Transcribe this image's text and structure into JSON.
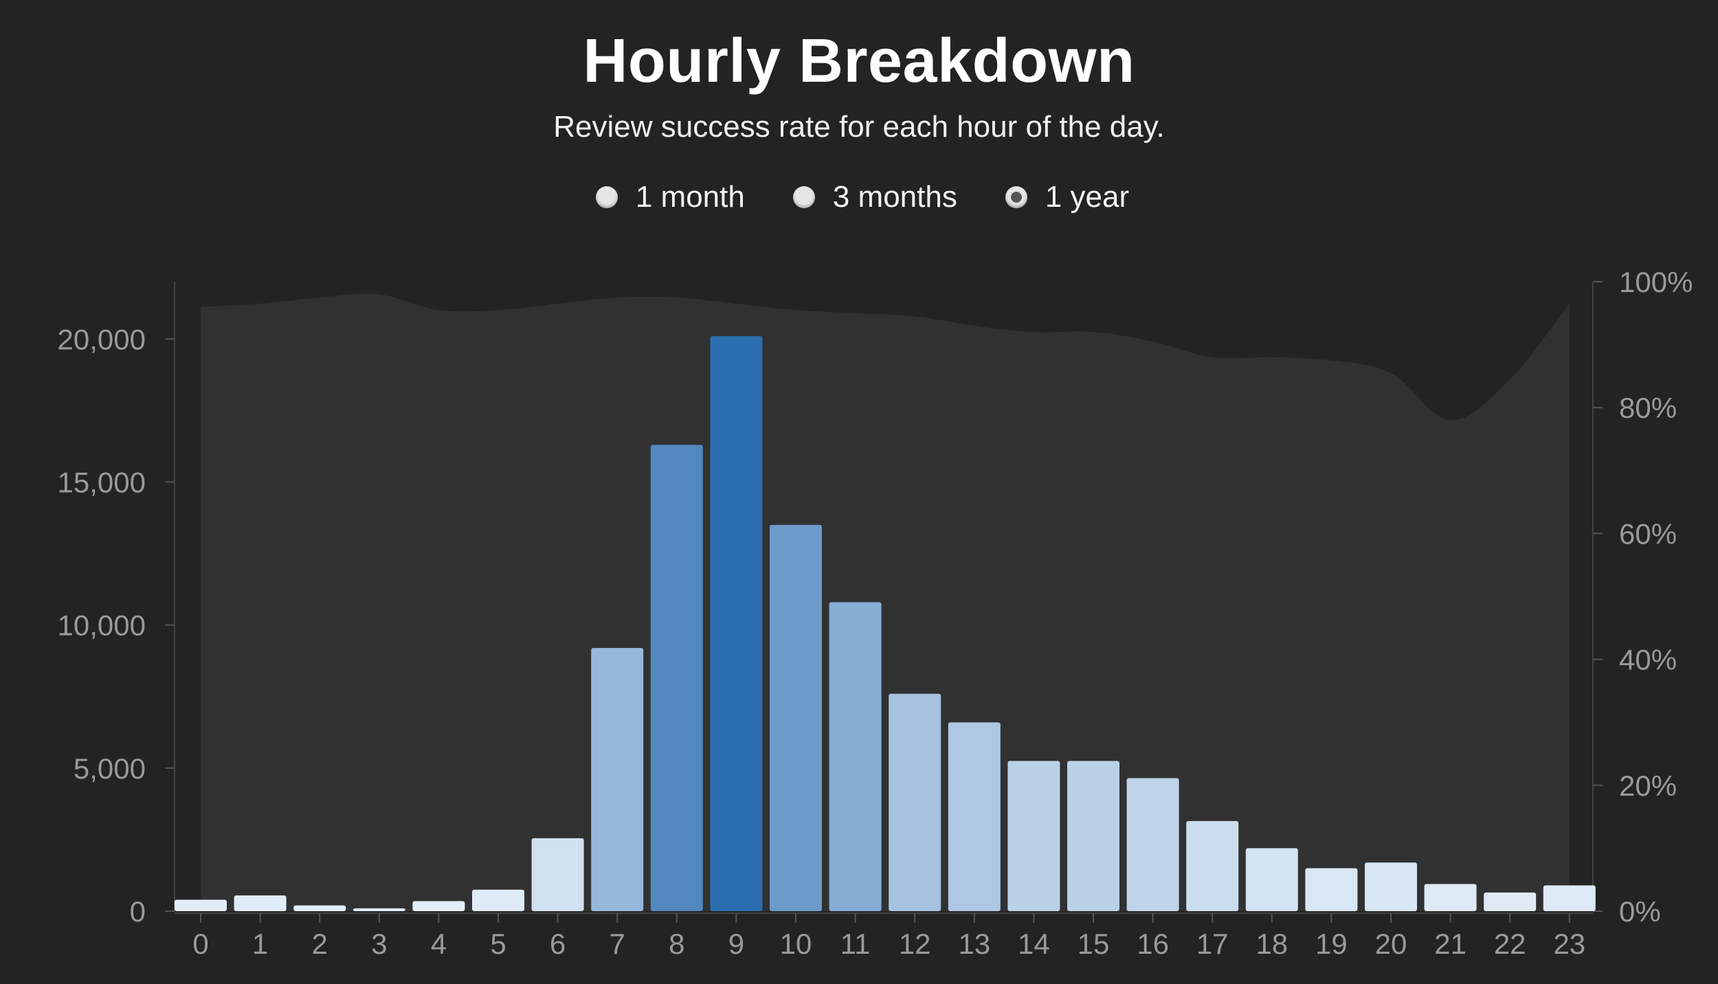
{
  "header": {
    "title": "Hourly Breakdown",
    "subtitle": "Review success rate for each hour of the day."
  },
  "range_selector": {
    "options": [
      {
        "label": "1 month",
        "checked": false
      },
      {
        "label": "3 months",
        "checked": false
      },
      {
        "label": "1 year",
        "checked": true
      }
    ]
  },
  "colors": {
    "background": "#232323",
    "plot_area": "#313131",
    "axis_text": "#9a9a9a",
    "bar_light": "#e4eef8",
    "bar_dark": "#2b6eb0"
  },
  "chart_data": {
    "type": "bar",
    "title": "Hourly Breakdown",
    "subtitle": "Review success rate for each hour of the day.",
    "categories": [
      "0",
      "1",
      "2",
      "3",
      "4",
      "5",
      "6",
      "7",
      "8",
      "9",
      "10",
      "11",
      "12",
      "13",
      "14",
      "15",
      "16",
      "17",
      "18",
      "19",
      "20",
      "21",
      "22",
      "23"
    ],
    "series": [
      {
        "axis": "left",
        "type": "bar",
        "values": [
          400,
          550,
          200,
          100,
          350,
          750,
          2550,
          9200,
          16300,
          20100,
          13500,
          10800,
          7600,
          6600,
          5250,
          5250,
          4650,
          3150,
          2200,
          1500,
          1700,
          950,
          650,
          900
        ]
      },
      {
        "axis": "right",
        "type": "area",
        "unit": "%",
        "values": [
          96.0,
          96.5,
          97.5,
          98.0,
          95.5,
          95.5,
          96.5,
          97.5,
          97.5,
          96.5,
          95.5,
          95.0,
          94.5,
          93.0,
          92.0,
          92.0,
          90.5,
          88.0,
          88.0,
          87.5,
          85.5,
          78.0,
          84.5,
          96.5
        ]
      }
    ],
    "y_left": {
      "ylim": [
        0,
        22000
      ],
      "ticks": [
        0,
        5000,
        10000,
        15000,
        20000
      ],
      "tick_labels": [
        "0",
        "5,000",
        "10,000",
        "15,000",
        "20,000"
      ]
    },
    "y_right": {
      "ylim": [
        0,
        100
      ],
      "ticks": [
        0,
        20,
        40,
        60,
        80,
        100
      ],
      "tick_labels": [
        "0%",
        "20%",
        "40%",
        "60%",
        "80%",
        "100%"
      ]
    },
    "xlabel": "",
    "ylabel": "",
    "grid": false,
    "legend": "none"
  }
}
